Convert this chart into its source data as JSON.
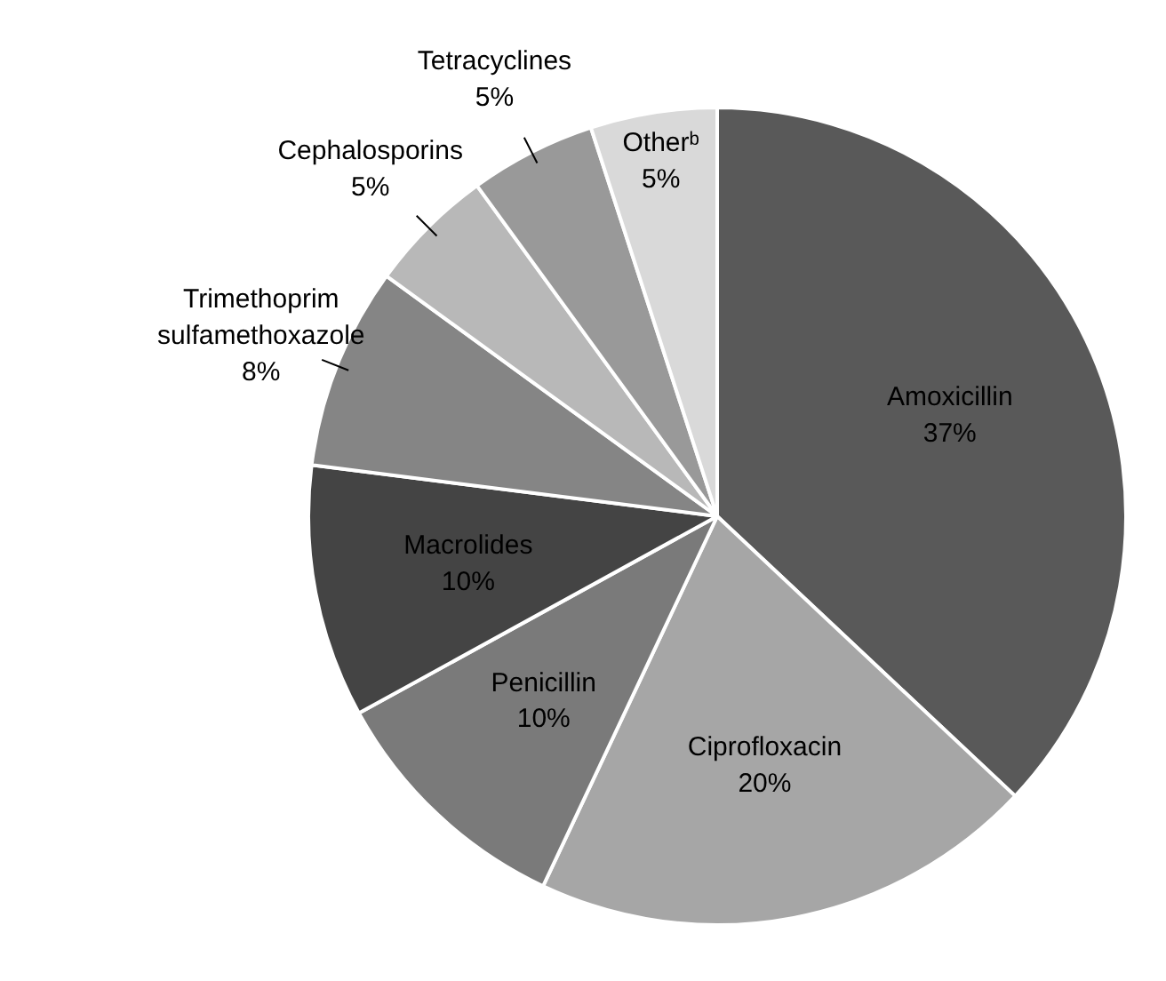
{
  "chart_data": {
    "type": "pie",
    "categories": [
      "Amoxicillin",
      "Ciprofloxacin",
      "Penicillin",
      "Macrolides",
      "Trimethoprim sulfamethoxazole",
      "Cephalosporins",
      "Tetracyclines",
      "Otherᵇ"
    ],
    "values": [
      37,
      20,
      10,
      10,
      8,
      5,
      5,
      5
    ],
    "colors": [
      "#595959",
      "#a6a6a6",
      "#7a7a7a",
      "#444444",
      "#858585",
      "#b8b8b8",
      "#999999",
      "#d9d9d9"
    ],
    "value_labels": [
      "37%",
      "20%",
      "10%",
      "10%",
      "8%",
      "5%",
      "5%",
      "5%"
    ]
  }
}
